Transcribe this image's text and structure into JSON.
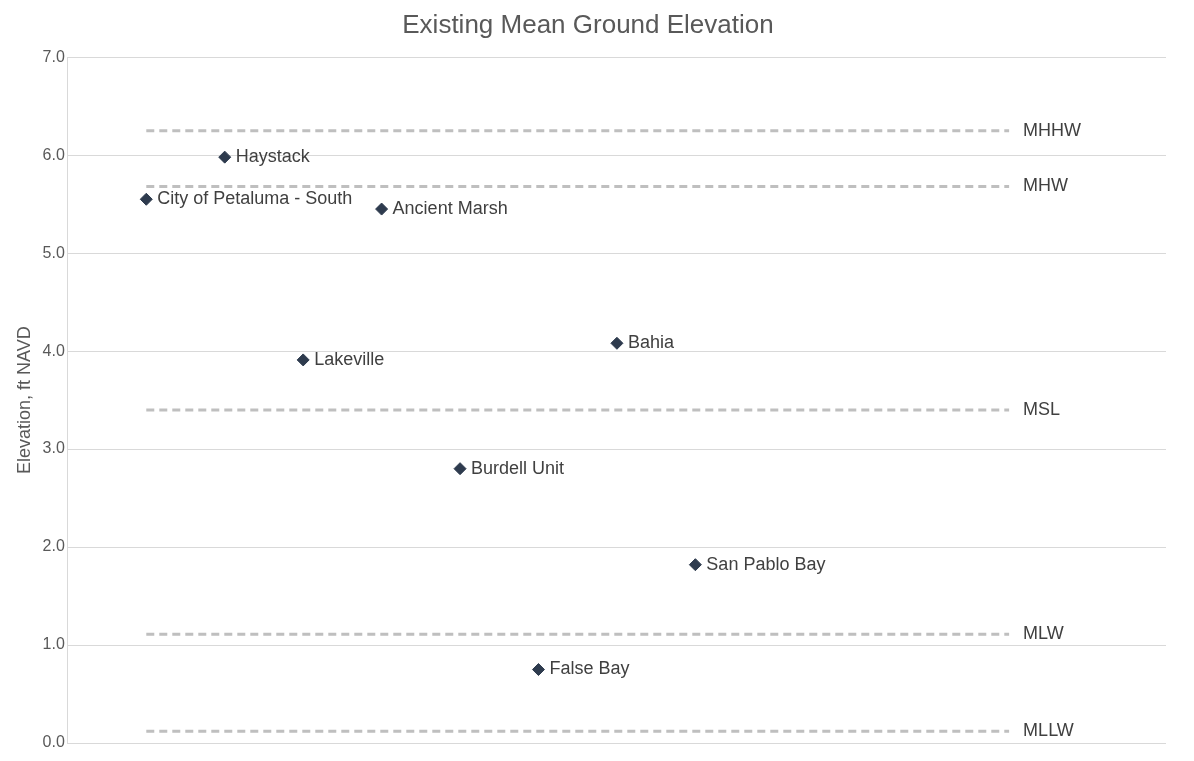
{
  "chart_data": {
    "type": "scatter",
    "title": "Existing Mean Ground Elevation",
    "ylabel": "Elevation, ft NAVD",
    "categories": [
      null,
      null,
      null,
      null,
      null,
      null,
      null,
      null,
      null,
      null,
      null,
      null,
      null,
      null,
      null
    ],
    "series": [
      {
        "name": "City of Petaluma - South",
        "color": "#2e3b4e",
        "values": [
          null,
          5.55,
          null,
          null,
          null,
          null,
          null,
          null,
          null,
          null,
          null,
          null,
          null,
          null,
          null
        ]
      },
      {
        "name": "Haystack",
        "color": "#2e3b4e",
        "values": [
          null,
          null,
          5.98,
          null,
          null,
          null,
          null,
          null,
          null,
          null,
          null,
          null,
          null,
          null,
          null
        ]
      },
      {
        "name": "Lakeville",
        "color": "#2e3b4e",
        "values": [
          null,
          null,
          null,
          3.91,
          null,
          null,
          null,
          null,
          null,
          null,
          null,
          null,
          null,
          null,
          null
        ]
      },
      {
        "name": "Ancient Marsh",
        "color": "#2e3b4e",
        "values": [
          null,
          null,
          null,
          null,
          5.45,
          null,
          null,
          null,
          null,
          null,
          null,
          null,
          null,
          null,
          null
        ]
      },
      {
        "name": "Burdell Unit",
        "color": "#2e3b4e",
        "values": [
          null,
          null,
          null,
          null,
          null,
          2.8,
          null,
          null,
          null,
          null,
          null,
          null,
          null,
          null,
          null
        ]
      },
      {
        "name": "False Bay",
        "color": "#2e3b4e",
        "values": [
          null,
          null,
          null,
          null,
          null,
          null,
          0.75,
          null,
          null,
          null,
          null,
          null,
          null,
          null,
          null
        ]
      },
      {
        "name": "Bahia",
        "color": "#2e3b4e",
        "values": [
          null,
          null,
          null,
          null,
          null,
          null,
          null,
          4.08,
          null,
          null,
          null,
          null,
          null,
          null,
          null
        ]
      },
      {
        "name": "San Pablo Bay",
        "color": "#2e3b4e",
        "values": [
          null,
          null,
          null,
          null,
          null,
          null,
          null,
          null,
          1.82,
          null,
          null,
          null,
          null,
          null,
          null
        ]
      }
    ],
    "ylim": [
      0,
      7
    ],
    "yticks": [
      {
        "value": 0,
        "label": "0.0"
      },
      {
        "value": 1,
        "label": "1.0"
      },
      {
        "value": 2,
        "label": "2.0"
      },
      {
        "value": 3,
        "label": "3.0"
      },
      {
        "value": 4,
        "label": "4.0"
      },
      {
        "value": 5,
        "label": "5.0"
      },
      {
        "value": 6,
        "label": "6.0"
      },
      {
        "value": 7,
        "label": "7.0"
      }
    ],
    "ref_lines": [
      {
        "axis": "y",
        "value": 6.25,
        "label": "MHHW",
        "color": "#bfbfbf",
        "line_style": "dashed"
      },
      {
        "axis": "y",
        "value": 5.68,
        "label": "MHW",
        "color": "#bfbfbf",
        "line_style": "dashed"
      },
      {
        "axis": "y",
        "value": 3.4,
        "label": "MSL",
        "color": "#bfbfbf",
        "line_style": "dashed"
      },
      {
        "axis": "y",
        "value": 1.11,
        "label": "MLW",
        "color": "#bfbfbf",
        "line_style": "dashed"
      },
      {
        "axis": "y",
        "value": 0.12,
        "label": "MLLW",
        "color": "#bfbfbf",
        "line_style": "dashed"
      }
    ],
    "grid": "y",
    "legend": false,
    "tick_labels": "y",
    "marker": "diamond"
  }
}
